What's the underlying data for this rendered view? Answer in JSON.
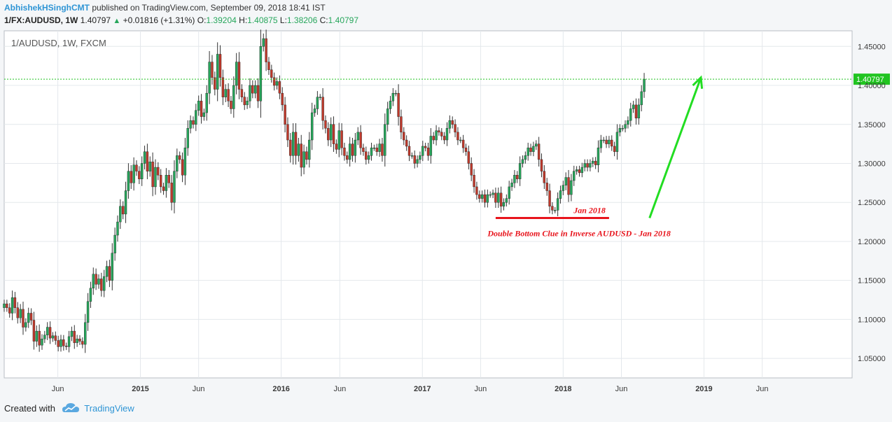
{
  "header": {
    "author": "AbhishekHSinghCMT",
    "published": "published on TradingView.com, September 09, 2018 18:41 IST"
  },
  "quote": {
    "symbol": "1/FX:AUDUSD, 1W",
    "last": "1.40797",
    "change": "+0.01816 (+1.31%)",
    "o_label": "O:",
    "o": "1.39204",
    "h_label": "H:",
    "h": "1.40875",
    "l_label": "L:",
    "l": "1.38206",
    "c_label": "C:",
    "c": "1.40797"
  },
  "footer": {
    "created_with": "Created with",
    "brand": "TradingView"
  },
  "colors": {
    "up": "#26a65b",
    "down": "#c0392b",
    "annotation": "#e8141c",
    "arrow": "#22dd22",
    "last_price_line": "#21c421",
    "grid": "#e4e8ec",
    "axis_text": "#3a3a3a"
  },
  "chart_data": {
    "type": "candlestick",
    "title": "1/AUDUSD, 1W, FXCM",
    "last_price_label": "1.40797",
    "last_price": 1.40797,
    "ylim": [
      1.025,
      1.47
    ],
    "y_ticks": [
      1.05,
      1.1,
      1.15,
      1.2,
      1.25,
      1.3,
      1.35,
      1.4,
      1.45
    ],
    "y_tick_labels": [
      "1.05000",
      "1.10000",
      "1.15000",
      "1.20000",
      "1.25000",
      "1.30000",
      "1.35000",
      "1.40000",
      "1.45000"
    ],
    "x_range": [
      "2014-01-13",
      "2020-01-20"
    ],
    "x_ticks": [
      {
        "label": "Jun",
        "date": "2014-06-01"
      },
      {
        "label": "2015",
        "date": "2015-01-01"
      },
      {
        "label": "Jun",
        "date": "2015-06-01"
      },
      {
        "label": "2016",
        "date": "2016-01-01"
      },
      {
        "label": "Jun",
        "date": "2016-06-01"
      },
      {
        "label": "2017",
        "date": "2017-01-01"
      },
      {
        "label": "Jun",
        "date": "2017-06-01"
      },
      {
        "label": "2018",
        "date": "2018-01-01"
      },
      {
        "label": "Jun",
        "date": "2018-06-01"
      },
      {
        "label": "2019",
        "date": "2019-01-01"
      },
      {
        "label": "Jun",
        "date": "2019-06-01"
      }
    ],
    "start_date": "2014-01-13",
    "closes": [
      1.12,
      1.115,
      1.108,
      1.128,
      1.115,
      1.102,
      1.113,
      1.09,
      1.096,
      1.108,
      1.099,
      1.072,
      1.085,
      1.067,
      1.075,
      1.08,
      1.09,
      1.076,
      1.079,
      1.073,
      1.065,
      1.074,
      1.066,
      1.065,
      1.078,
      1.085,
      1.07,
      1.075,
      1.072,
      1.068,
      1.096,
      1.123,
      1.14,
      1.158,
      1.145,
      1.152,
      1.137,
      1.155,
      1.168,
      1.15,
      1.185,
      1.208,
      1.225,
      1.245,
      1.235,
      1.265,
      1.29,
      1.275,
      1.298,
      1.29,
      1.28,
      1.3,
      1.315,
      1.29,
      1.302,
      1.27,
      1.295,
      1.285,
      1.27,
      1.265,
      1.285,
      1.275,
      1.25,
      1.29,
      1.31,
      1.305,
      1.285,
      1.32,
      1.345,
      1.355,
      1.35,
      1.368,
      1.38,
      1.36,
      1.365,
      1.39,
      1.43,
      1.41,
      1.395,
      1.44,
      1.41,
      1.385,
      1.395,
      1.38,
      1.37,
      1.4,
      1.43,
      1.395,
      1.385,
      1.375,
      1.38,
      1.4,
      1.39,
      1.4,
      1.38,
      1.45,
      1.46,
      1.43,
      1.42,
      1.41,
      1.4,
      1.405,
      1.39,
      1.375,
      1.35,
      1.33,
      1.31,
      1.34,
      1.31,
      1.325,
      1.295,
      1.315,
      1.305,
      1.33,
      1.365,
      1.37,
      1.385,
      1.385,
      1.355,
      1.345,
      1.33,
      1.35,
      1.325,
      1.318,
      1.342,
      1.32,
      1.31,
      1.305,
      1.325,
      1.31,
      1.33,
      1.34,
      1.32,
      1.315,
      1.305,
      1.31,
      1.32,
      1.32,
      1.315,
      1.325,
      1.31,
      1.35,
      1.37,
      1.38,
      1.39,
      1.39,
      1.36,
      1.34,
      1.33,
      1.322,
      1.31,
      1.31,
      1.3,
      1.305,
      1.31,
      1.322,
      1.32,
      1.31,
      1.335,
      1.33,
      1.342,
      1.34,
      1.335,
      1.33,
      1.345,
      1.355,
      1.35,
      1.34,
      1.33,
      1.33,
      1.32,
      1.315,
      1.3,
      1.285,
      1.27,
      1.26,
      1.255,
      1.26,
      1.25,
      1.26,
      1.26,
      1.262,
      1.25,
      1.262,
      1.245,
      1.25,
      1.255,
      1.27,
      1.275,
      1.285,
      1.28,
      1.3,
      1.305,
      1.31,
      1.32,
      1.315,
      1.322,
      1.325,
      1.305,
      1.29,
      1.275,
      1.265,
      1.245,
      1.24,
      1.24,
      1.255,
      1.265,
      1.272,
      1.282,
      1.26,
      1.278,
      1.29,
      1.292,
      1.288,
      1.295,
      1.3,
      1.295,
      1.3,
      1.303,
      1.298,
      1.32,
      1.33,
      1.33,
      1.325,
      1.33,
      1.322,
      1.315,
      1.34,
      1.345,
      1.345,
      1.35,
      1.355,
      1.37,
      1.375,
      1.358,
      1.375,
      1.392,
      1.408
    ]
  },
  "annotations": {
    "date_label": "Jan 2018",
    "note": "Double Bottom Clue in Inverse AUDUSD - Jan 2018",
    "support_level": 1.23,
    "support_from": "2017-07-10",
    "support_to": "2018-04-30",
    "arrow_from": {
      "date": "2018-08-13",
      "value": 1.23
    },
    "arrow_to": {
      "date": "2018-12-24",
      "value": 1.41
    }
  }
}
